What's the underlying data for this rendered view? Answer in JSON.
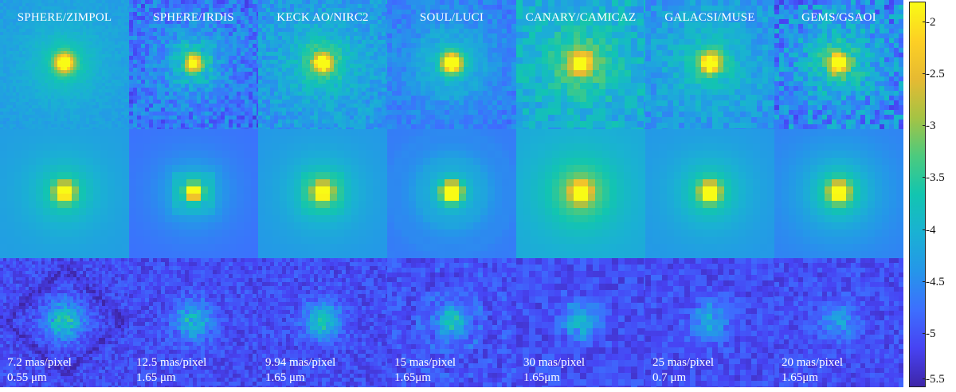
{
  "instruments": [
    {
      "title": "SPHERE/ZIMPOL",
      "scale": "7.2 mas/pixel",
      "wavelength": "0.55 μm"
    },
    {
      "title": "SPHERE/IRDIS",
      "scale": "12.5 mas/pixel",
      "wavelength": "1.65 μm"
    },
    {
      "title": "KECK AO/NIRC2",
      "scale": "9.94 mas/pixel",
      "wavelength": "1.65 μm"
    },
    {
      "title": "SOUL/LUCI",
      "scale": "15 mas/pixel",
      "wavelength": "1.65μm"
    },
    {
      "title": "CANARY/CAMICAZ",
      "scale": "30 mas/pixel",
      "wavelength": "1.65μm"
    },
    {
      "title": "GALACSI/MUSE",
      "scale": "25 mas/pixel",
      "wavelength": "0.7 μm"
    },
    {
      "title": "GEMS/GSAOI",
      "scale": "20 mas/pixel",
      "wavelength": "1.65μm"
    }
  ],
  "colorbar": {
    "ticks": [
      "-2",
      "-2.5",
      "-3",
      "-3.5",
      "-4",
      "-4.5",
      "-5",
      "-5.5"
    ],
    "min": -5.5,
    "max": -1.8,
    "colors": [
      "#3e26a8",
      "#4743f3",
      "#3d6ffe",
      "#2596e9",
      "#1ab1d3",
      "#12c5b0",
      "#4cca7e",
      "#a5c344",
      "#e6ba32",
      "#fdd024",
      "#f9fb15"
    ]
  }
}
